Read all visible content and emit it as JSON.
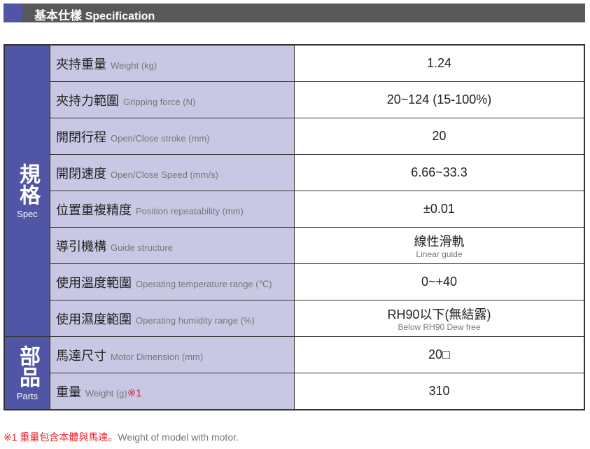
{
  "header": {
    "title_zh": "基本仕樣",
    "title_en": "Specification"
  },
  "groups": {
    "spec": {
      "zh": "規格",
      "en": "Spec"
    },
    "parts": {
      "zh": "部品",
      "en": "Parts"
    }
  },
  "rows": [
    {
      "zh": "夾持重量",
      "en": "Weight (kg)",
      "value": "1.24"
    },
    {
      "zh": "夾持力範圍",
      "en": "Gripping force (N)",
      "value": "20~124 (15-100%)"
    },
    {
      "zh": "開閉行程",
      "en": "Open/Close  stroke (mm)",
      "value": "20"
    },
    {
      "zh": "開閉速度",
      "en": "Open/Close Speed (mm/s)",
      "value": "6.66~33.3"
    },
    {
      "zh": "位置重複精度",
      "en": "Position repeatability (mm)",
      "value": "±0.01"
    },
    {
      "zh": "導引機構",
      "en": "Guide structure",
      "value": "線性滑軌",
      "value_sub": "Linear guide"
    },
    {
      "zh": "使用溫度範圍",
      "en": "Operating temperature range (℃)",
      "value": "0~+40"
    },
    {
      "zh": "使用濕度範圍",
      "en": "Operating humidity range (%)",
      "value": "RH90以下(無結露)",
      "value_sub": "Below RH90 Dew free"
    },
    {
      "zh": "馬達尺寸",
      "en": "Motor Dimension (mm)",
      "value": "20□"
    },
    {
      "zh": "重量",
      "en": "Weight (g)",
      "mark": "※1",
      "value": "310"
    }
  ],
  "footnote": {
    "mark_zh": "※1 重量包含本體與馬達。",
    "en": "Weight of model with motor."
  },
  "colors": {
    "accent": "#5055a5",
    "label_bg": "#c8c8e4",
    "header_bg": "#58585a",
    "note": "#e8202a"
  }
}
